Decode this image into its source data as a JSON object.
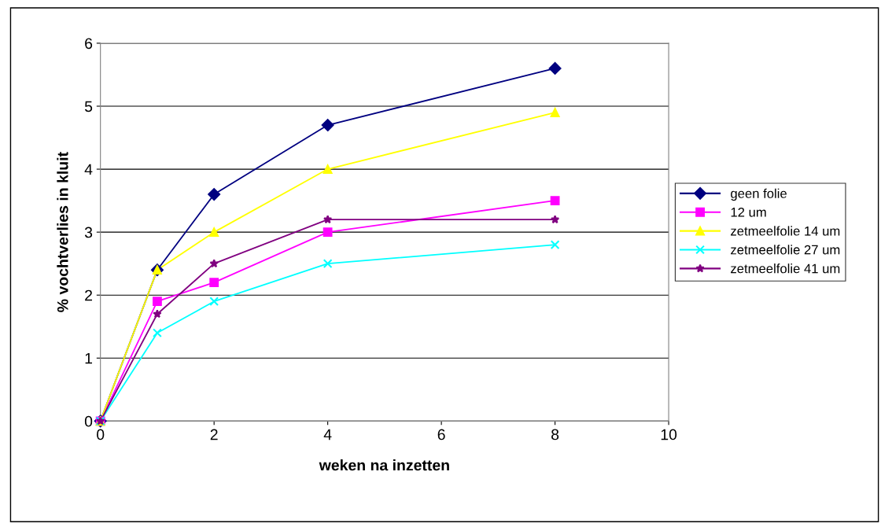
{
  "chart_data": {
    "type": "line",
    "xlabel": "weken na inzetten",
    "ylabel": "% vochtverlies in kluit",
    "x": [
      0,
      1,
      2,
      4,
      8
    ],
    "series": [
      {
        "name": "geen folie",
        "color": "#000080",
        "marker": "diamond",
        "values": [
          0,
          2.4,
          3.6,
          4.7,
          5.6
        ]
      },
      {
        "name": "12 um",
        "color": "#ff00ff",
        "marker": "square",
        "values": [
          0,
          1.9,
          2.2,
          3.0,
          3.5
        ]
      },
      {
        "name": "zetmeelfolie 14 um",
        "color": "#ffff00",
        "marker": "triangle",
        "values": [
          0,
          2.4,
          3.0,
          4.0,
          4.9
        ]
      },
      {
        "name": "zetmeelfolie 27 um",
        "color": "#00ffff",
        "marker": "cross",
        "values": [
          0,
          1.4,
          1.9,
          2.5,
          2.8
        ]
      },
      {
        "name": "zetmeelfolie 41 um",
        "color": "#800080",
        "marker": "star",
        "values": [
          0,
          1.7,
          2.5,
          3.2,
          3.2
        ]
      }
    ],
    "xlim": [
      0,
      10
    ],
    "xticks": [
      0,
      2,
      4,
      6,
      8,
      10
    ],
    "ylim": [
      0,
      6
    ],
    "yticks": [
      0,
      1,
      2,
      3,
      4,
      5,
      6
    ],
    "grid": "y",
    "legend": "right",
    "line_style": "solid"
  }
}
